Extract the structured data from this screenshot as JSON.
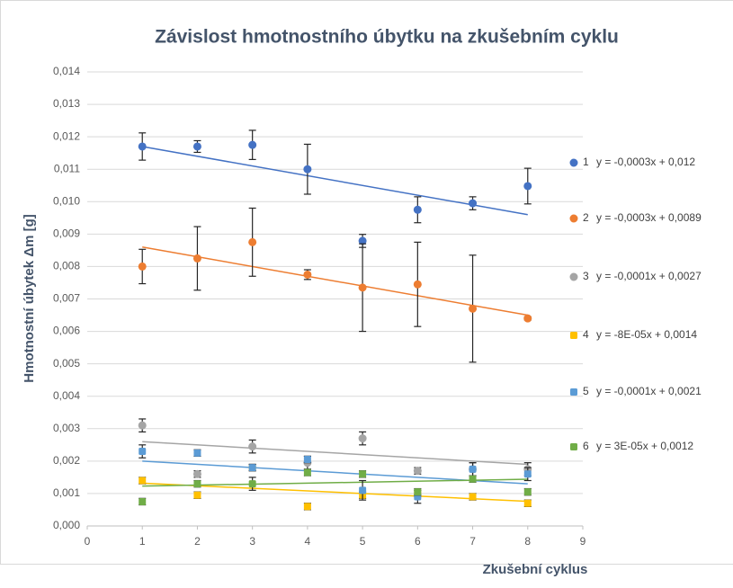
{
  "chart_data": {
    "type": "scatter",
    "title": "Závislost hmotnostního úbytku na zkušebním cyklu",
    "x_label": "Zkušební cyklus",
    "y_label": "Hmotnostní úbytek Δm [g]",
    "x": [
      1,
      2,
      3,
      4,
      5,
      6,
      7,
      8
    ],
    "xlim": [
      0,
      9
    ],
    "xticks": [
      0,
      1,
      2,
      3,
      4,
      5,
      6,
      7,
      8,
      9
    ],
    "ylim": [
      0,
      0.014
    ],
    "yticks": [
      {
        "value": 0,
        "label": "0,000"
      },
      {
        "value": 0.001,
        "label": "0,001"
      },
      {
        "value": 0.002,
        "label": "0,002"
      },
      {
        "value": 0.003,
        "label": "0,003"
      },
      {
        "value": 0.004,
        "label": "0,004"
      },
      {
        "value": 0.005,
        "label": "0,005"
      },
      {
        "value": 0.006,
        "label": "0,006"
      },
      {
        "value": 0.007,
        "label": "0,007"
      },
      {
        "value": 0.008,
        "label": "0,008"
      },
      {
        "value": 0.009,
        "label": "0,009"
      },
      {
        "value": 0.01,
        "label": "0,010"
      },
      {
        "value": 0.011,
        "label": "0,011"
      },
      {
        "value": 0.012,
        "label": "0,012"
      },
      {
        "value": 0.013,
        "label": "0,013"
      },
      {
        "value": 0.014,
        "label": "0,014"
      }
    ],
    "grid": true,
    "legend": "right",
    "series": [
      {
        "name": "1",
        "color": "#4472c4",
        "marker": "circle",
        "values": [
          0.0117,
          0.0117,
          0.01175,
          0.011,
          0.00879,
          0.00975,
          0.00995,
          0.01048
        ],
        "errors": [
          0.00042,
          0.00018,
          0.00045,
          0.00077,
          0.0002,
          0.0004,
          0.0002,
          0.00055
        ],
        "trendline": {
          "slope": -0.0003,
          "intercept": 0.012
        },
        "trendline_label": "y = -0,0003x + 0,012"
      },
      {
        "name": "2",
        "color": "#ed7d31",
        "marker": "circle",
        "values": [
          0.008,
          0.00825,
          0.00875,
          0.00775,
          0.00735,
          0.00745,
          0.0067,
          0.0064
        ],
        "errors": [
          0.00053,
          0.00098,
          0.00105,
          0.00015,
          0.00135,
          0.0013,
          0.00165,
          5e-05
        ],
        "trendline": {
          "slope": -0.0003,
          "intercept": 0.0089
        },
        "trendline_label": "y = -0,0003x + 0,0089"
      },
      {
        "name": "3",
        "color": "#a5a5a5",
        "marker": "circle",
        "values": [
          0.0031,
          0.0016,
          0.00245,
          0.00195,
          0.0027,
          0.0017,
          0.00175,
          0.00175
        ],
        "errors": [
          0.0002,
          0.0001,
          0.0002,
          0.0002,
          0.0002,
          0.0001,
          0.0002,
          0.0002
        ],
        "trendline": {
          "slope": -0.0001,
          "intercept": 0.0027
        },
        "trendline_label": "y = -0,0001x + 0,0027"
      },
      {
        "name": "4",
        "color": "#ffc000",
        "marker": "square",
        "values": [
          0.0014,
          0.00095,
          0.0018,
          0.0006,
          0.00095,
          0.001,
          0.0009,
          0.0007
        ],
        "errors": [
          0.0001,
          0.0001,
          0.0001,
          0.0001,
          0.0001,
          0.0001,
          0.0001,
          0.0001
        ],
        "trendline": {
          "slope": -8e-05,
          "intercept": 0.0014
        },
        "trendline_label": "y = -8E-05x + 0,0014"
      },
      {
        "name": "5",
        "color": "#5b9bd5",
        "marker": "square",
        "values": [
          0.0023,
          0.00225,
          0.0018,
          0.00205,
          0.0011,
          0.0009,
          0.00175,
          0.0016
        ],
        "errors": [
          0.0002,
          0.0001,
          0.0001,
          0.0001,
          0.0003,
          0.0002,
          0.0002,
          0.0002
        ],
        "trendline": {
          "slope": -0.0001,
          "intercept": 0.0021
        },
        "trendline_label": "y = -0,0001x + 0,0021"
      },
      {
        "name": "6",
        "color": "#70ad47",
        "marker": "square",
        "values": [
          0.00075,
          0.0013,
          0.0013,
          0.00165,
          0.0016,
          0.00105,
          0.00145,
          0.00105
        ],
        "errors": [
          0.0001,
          0.0001,
          0.0002,
          0.0001,
          0.0001,
          0.0001,
          0.0001,
          0.0001
        ],
        "trendline": {
          "slope": 3e-05,
          "intercept": 0.0012
        },
        "trendline_label": "y = 3E-05x + 0,0012"
      }
    ]
  }
}
